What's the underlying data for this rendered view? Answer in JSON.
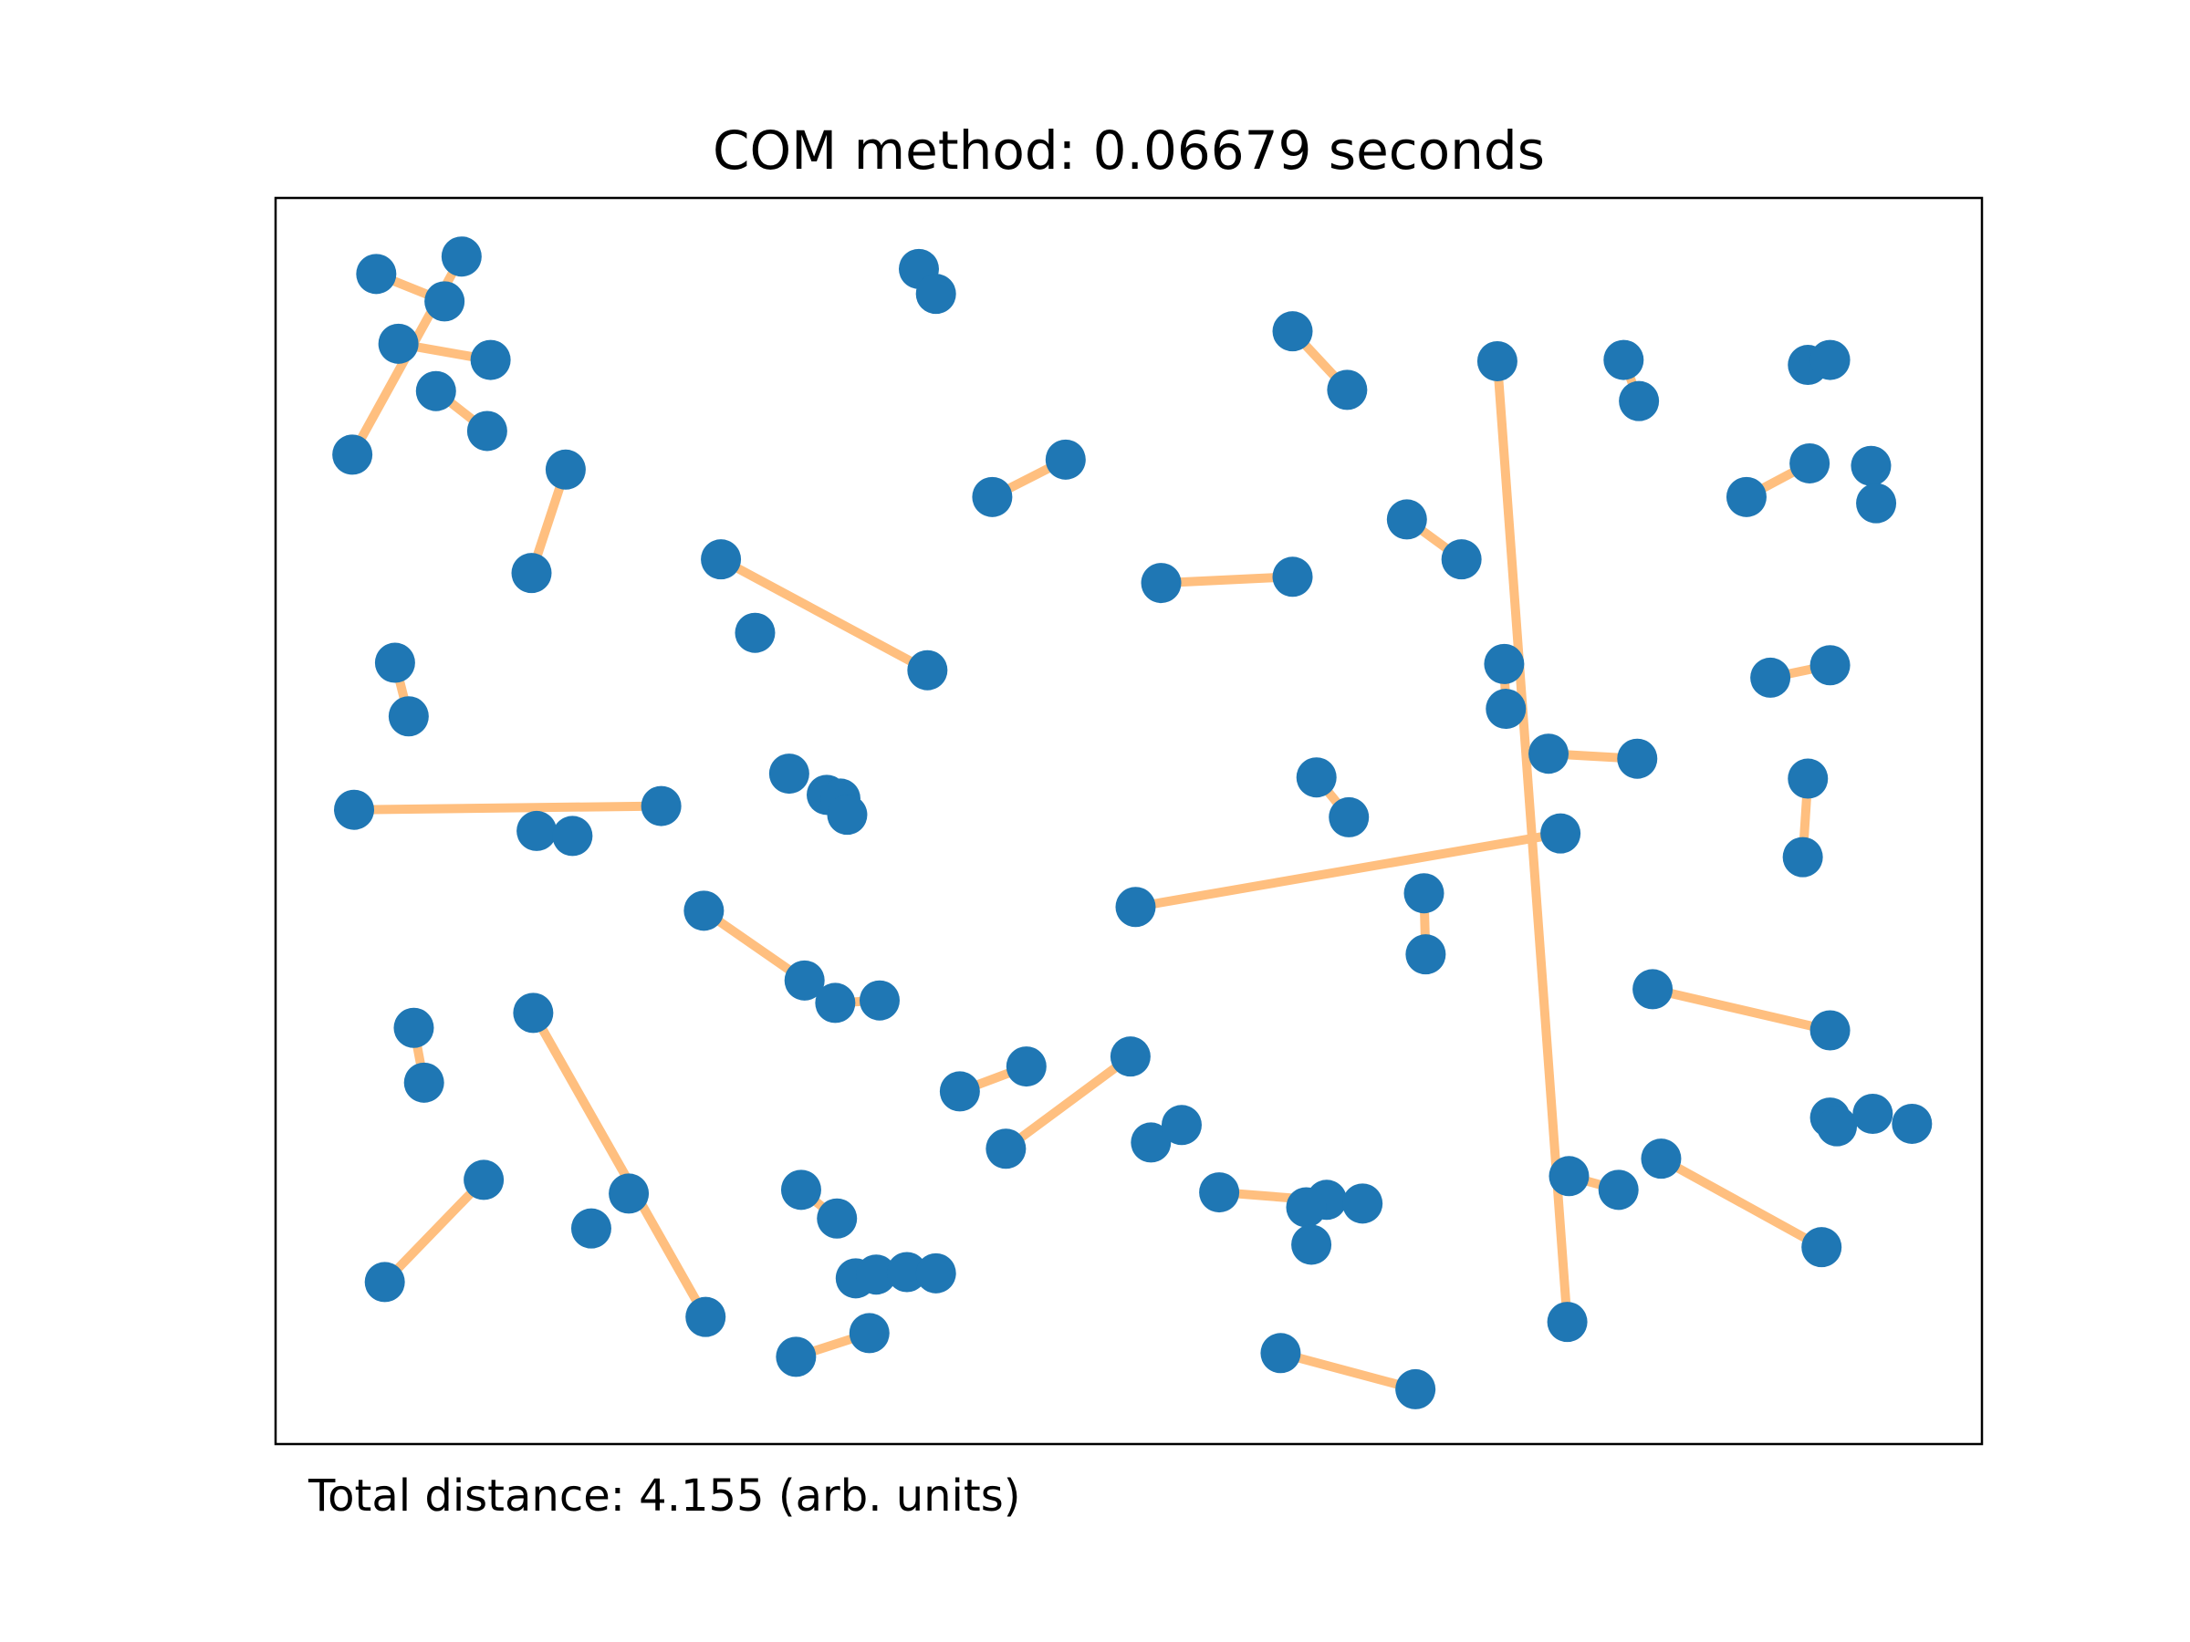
{
  "chart_data": {
    "type": "scatter",
    "title": "COM method: 0.06679 seconds",
    "caption": "Total distance: 4.155 (arb. units)",
    "xlim": [
      0,
      1
    ],
    "ylim": [
      0,
      1
    ],
    "axes_ticks": false,
    "grid": false,
    "colors": {
      "points": "#1f77b4",
      "pairs": "#ffbf7f"
    },
    "points": [
      [
        0.059,
        0.939
      ],
      [
        0.099,
        0.917
      ],
      [
        0.109,
        0.953
      ],
      [
        0.072,
        0.883
      ],
      [
        0.126,
        0.87
      ],
      [
        0.094,
        0.845
      ],
      [
        0.124,
        0.813
      ],
      [
        0.045,
        0.794
      ],
      [
        0.17,
        0.782
      ],
      [
        0.15,
        0.699
      ],
      [
        0.377,
        0.943
      ],
      [
        0.387,
        0.923
      ],
      [
        0.596,
        0.893
      ],
      [
        0.628,
        0.846
      ],
      [
        0.716,
        0.869
      ],
      [
        0.79,
        0.87
      ],
      [
        0.799,
        0.837
      ],
      [
        0.898,
        0.866
      ],
      [
        0.911,
        0.87
      ],
      [
        0.899,
        0.787
      ],
      [
        0.935,
        0.785
      ],
      [
        0.938,
        0.755
      ],
      [
        0.862,
        0.76
      ],
      [
        0.42,
        0.76
      ],
      [
        0.463,
        0.79
      ],
      [
        0.519,
        0.691
      ],
      [
        0.596,
        0.696
      ],
      [
        0.663,
        0.742
      ],
      [
        0.695,
        0.71
      ],
      [
        0.261,
        0.71
      ],
      [
        0.281,
        0.651
      ],
      [
        0.382,
        0.621
      ],
      [
        0.07,
        0.627
      ],
      [
        0.078,
        0.584
      ],
      [
        0.72,
        0.626
      ],
      [
        0.721,
        0.59
      ],
      [
        0.746,
        0.554
      ],
      [
        0.798,
        0.55
      ],
      [
        0.876,
        0.615
      ],
      [
        0.911,
        0.625
      ],
      [
        0.301,
        0.538
      ],
      [
        0.323,
        0.521
      ],
      [
        0.331,
        0.518
      ],
      [
        0.335,
        0.505
      ],
      [
        0.046,
        0.509
      ],
      [
        0.153,
        0.492
      ],
      [
        0.174,
        0.488
      ],
      [
        0.226,
        0.512
      ],
      [
        0.61,
        0.535
      ],
      [
        0.629,
        0.503
      ],
      [
        0.898,
        0.534
      ],
      [
        0.895,
        0.471
      ],
      [
        0.504,
        0.431
      ],
      [
        0.753,
        0.49
      ],
      [
        0.673,
        0.442
      ],
      [
        0.674,
        0.393
      ],
      [
        0.251,
        0.428
      ],
      [
        0.31,
        0.372
      ],
      [
        0.328,
        0.354
      ],
      [
        0.354,
        0.356
      ],
      [
        0.081,
        0.334
      ],
      [
        0.087,
        0.29
      ],
      [
        0.151,
        0.346
      ],
      [
        0.807,
        0.365
      ],
      [
        0.911,
        0.332
      ],
      [
        0.401,
        0.283
      ],
      [
        0.44,
        0.303
      ],
      [
        0.501,
        0.311
      ],
      [
        0.428,
        0.237
      ],
      [
        0.513,
        0.242
      ],
      [
        0.531,
        0.256
      ],
      [
        0.911,
        0.262
      ],
      [
        0.915,
        0.255
      ],
      [
        0.936,
        0.265
      ],
      [
        0.959,
        0.257
      ],
      [
        0.122,
        0.212
      ],
      [
        0.064,
        0.13
      ],
      [
        0.207,
        0.201
      ],
      [
        0.185,
        0.173
      ],
      [
        0.308,
        0.204
      ],
      [
        0.616,
        0.196
      ],
      [
        0.553,
        0.202
      ],
      [
        0.604,
        0.19
      ],
      [
        0.637,
        0.193
      ],
      [
        0.607,
        0.16
      ],
      [
        0.758,
        0.215
      ],
      [
        0.787,
        0.204
      ],
      [
        0.812,
        0.229
      ],
      [
        0.906,
        0.158
      ],
      [
        0.329,
        0.181
      ],
      [
        0.34,
        0.133
      ],
      [
        0.352,
        0.136
      ],
      [
        0.37,
        0.138
      ],
      [
        0.387,
        0.137
      ],
      [
        0.252,
        0.102
      ],
      [
        0.757,
        0.098
      ],
      [
        0.305,
        0.07
      ],
      [
        0.348,
        0.089
      ],
      [
        0.589,
        0.073
      ],
      [
        0.668,
        0.044
      ]
    ],
    "pairs": [
      [
        0.059,
        0.939,
        0.099,
        0.917
      ],
      [
        0.109,
        0.953,
        0.045,
        0.794
      ],
      [
        0.072,
        0.883,
        0.126,
        0.87
      ],
      [
        0.094,
        0.845,
        0.124,
        0.813
      ],
      [
        0.17,
        0.782,
        0.15,
        0.699
      ],
      [
        0.377,
        0.943,
        0.387,
        0.923
      ],
      [
        0.596,
        0.893,
        0.628,
        0.846
      ],
      [
        0.716,
        0.869,
        0.757,
        0.098
      ],
      [
        0.79,
        0.87,
        0.799,
        0.837
      ],
      [
        0.898,
        0.866,
        0.911,
        0.87
      ],
      [
        0.862,
        0.76,
        0.899,
        0.787
      ],
      [
        0.935,
        0.785,
        0.938,
        0.755
      ],
      [
        0.42,
        0.76,
        0.463,
        0.79
      ],
      [
        0.519,
        0.691,
        0.596,
        0.696
      ],
      [
        0.663,
        0.742,
        0.695,
        0.71
      ],
      [
        0.261,
        0.71,
        0.382,
        0.621
      ],
      [
        0.07,
        0.627,
        0.078,
        0.584
      ],
      [
        0.72,
        0.626,
        0.721,
        0.59
      ],
      [
        0.746,
        0.554,
        0.798,
        0.55
      ],
      [
        0.876,
        0.615,
        0.911,
        0.625
      ],
      [
        0.046,
        0.509,
        0.226,
        0.512
      ],
      [
        0.61,
        0.535,
        0.629,
        0.503
      ],
      [
        0.898,
        0.534,
        0.895,
        0.471
      ],
      [
        0.504,
        0.431,
        0.753,
        0.49
      ],
      [
        0.673,
        0.442,
        0.674,
        0.393
      ],
      [
        0.251,
        0.428,
        0.31,
        0.372
      ],
      [
        0.328,
        0.354,
        0.354,
        0.356
      ],
      [
        0.081,
        0.334,
        0.087,
        0.29
      ],
      [
        0.151,
        0.346,
        0.252,
        0.102
      ],
      [
        0.807,
        0.365,
        0.911,
        0.332
      ],
      [
        0.401,
        0.283,
        0.44,
        0.303
      ],
      [
        0.428,
        0.237,
        0.501,
        0.311
      ],
      [
        0.553,
        0.202,
        0.637,
        0.193
      ],
      [
        0.122,
        0.212,
        0.064,
        0.13
      ],
      [
        0.758,
        0.215,
        0.787,
        0.204
      ],
      [
        0.812,
        0.229,
        0.906,
        0.158
      ],
      [
        0.305,
        0.07,
        0.348,
        0.089
      ],
      [
        0.589,
        0.073,
        0.668,
        0.044
      ],
      [
        0.308,
        0.204,
        0.329,
        0.181
      ]
    ]
  }
}
